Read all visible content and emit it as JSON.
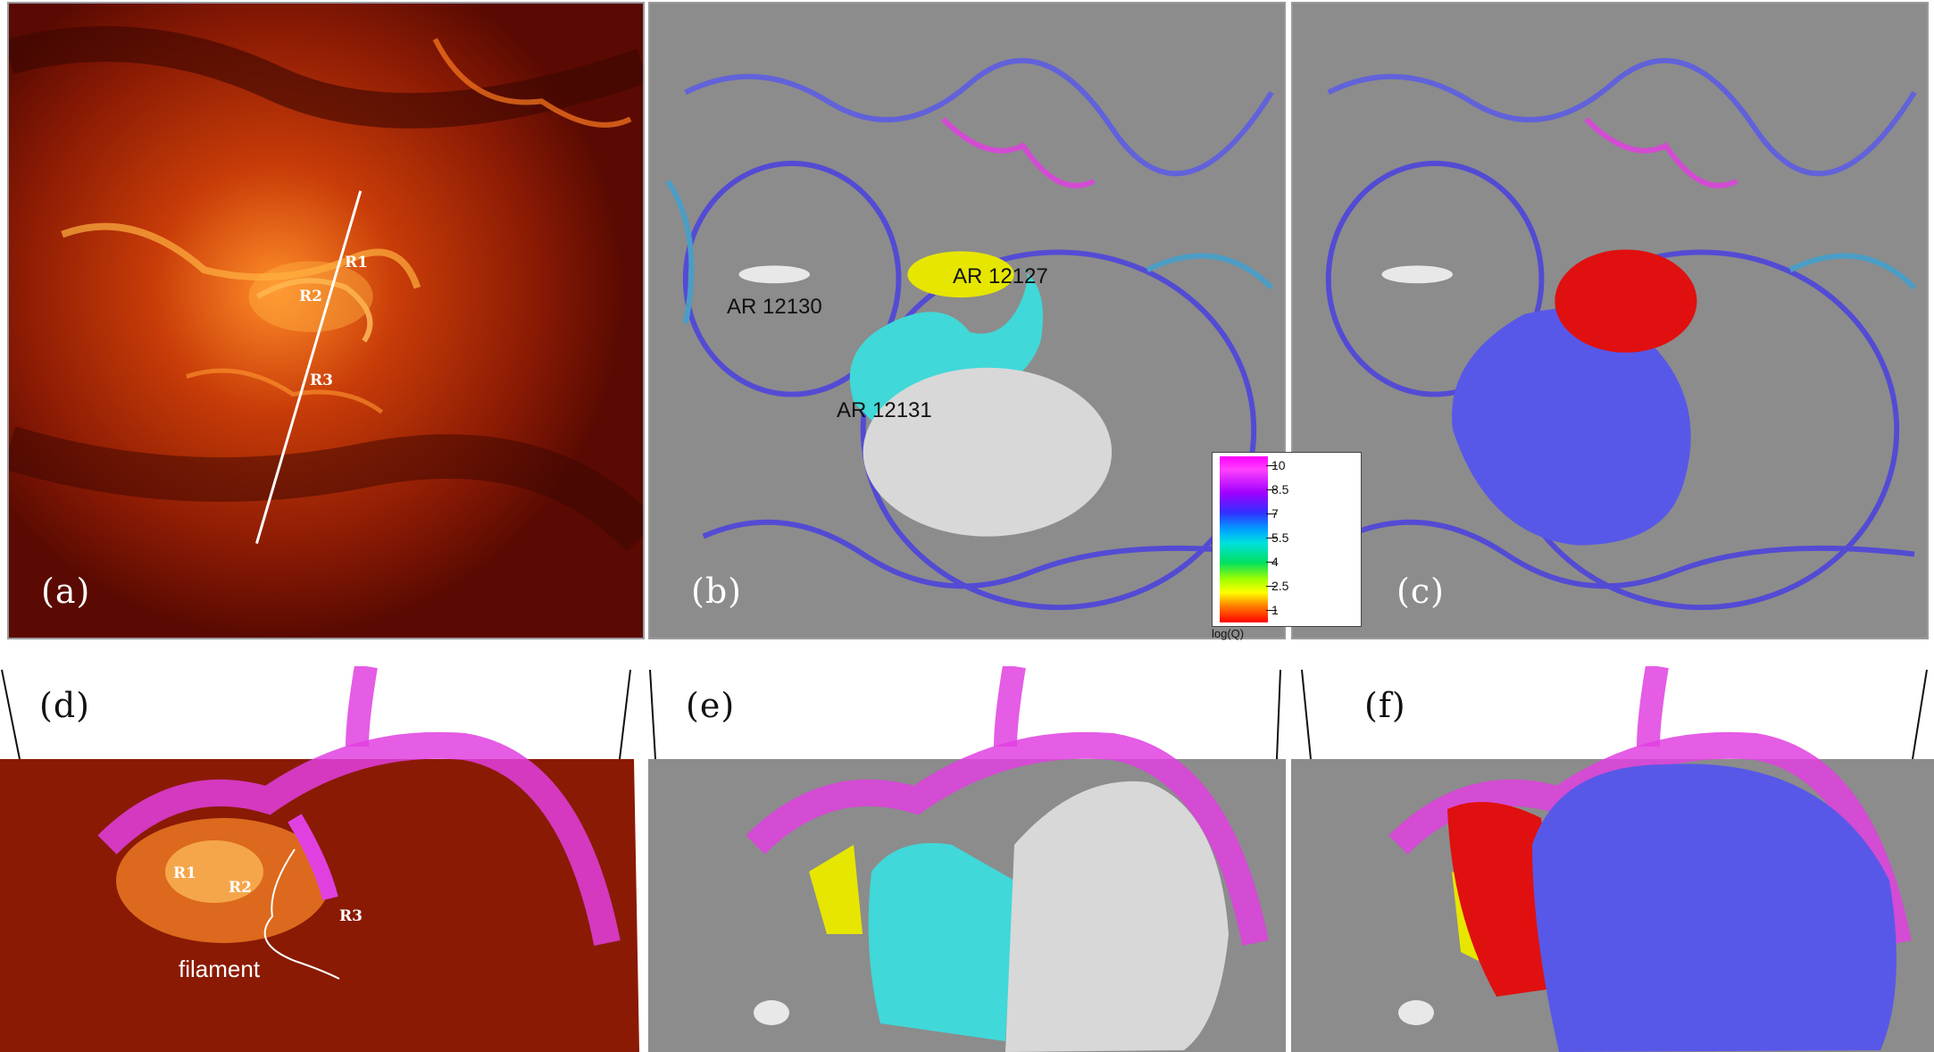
{
  "panels": {
    "a": {
      "label": "(a)",
      "annotations": {
        "r1": "R1",
        "r2": "R2",
        "r3": "R3"
      }
    },
    "b": {
      "label": "(b)",
      "regions": {
        "ar12130": "AR 12130",
        "ar12127": "AR 12127",
        "ar12131": "AR 12131"
      }
    },
    "c": {
      "label": "(c)"
    },
    "d": {
      "label": "(d)",
      "annotations": {
        "r1": "R1",
        "r2": "R2",
        "r3": "R3",
        "filament": "filament"
      }
    },
    "e": {
      "label": "(e)"
    },
    "f": {
      "label": "(f)"
    }
  },
  "legend": {
    "title": "log(Q)",
    "ticks": [
      "10",
      "8.5",
      "7",
      "5.5",
      "4",
      "2.5",
      "1"
    ]
  },
  "colors": {
    "euv_dark": "#5a0a02",
    "euv_bright": "#ff9a30",
    "magnetogram": "#8a8a8a",
    "qsl_magenta": "#e040e0",
    "qsl_blue": "#4a40e0",
    "flux_yellow": "#e6e600",
    "flux_cyan": "#40d8d8",
    "flux_white": "#d8d8d8",
    "flux_red": "#e01010",
    "flux_blue": "#5858e8"
  }
}
